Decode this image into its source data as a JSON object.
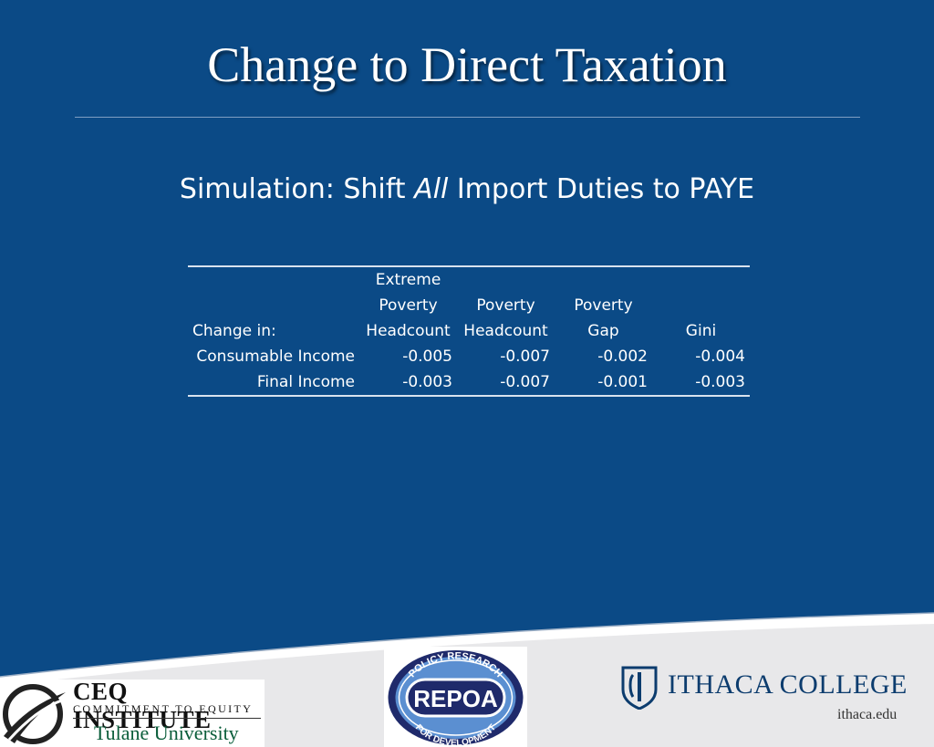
{
  "slide": {
    "title": "Change to Direct Taxation",
    "subtitle_prefix": "Simulation: Shift ",
    "subtitle_emphasis": "All",
    "subtitle_suffix": " Import Duties to PAYE"
  },
  "table": {
    "corner_label": "Change in:",
    "columns": [
      {
        "lines": [
          "Extreme",
          "Poverty",
          "Headcount"
        ]
      },
      {
        "lines": [
          "Poverty",
          "Headcount"
        ]
      },
      {
        "lines": [
          "Poverty",
          "Gap"
        ]
      },
      {
        "lines": [
          "Gini"
        ]
      }
    ],
    "rows": [
      {
        "label": "Consumable Income",
        "values": [
          "-0.005",
          "-0.007",
          "-0.002",
          "-0.004"
        ]
      },
      {
        "label": "Final Income",
        "values": [
          "-0.003",
          "-0.007",
          "-0.001",
          "-0.003"
        ]
      }
    ]
  },
  "logos": {
    "ceq": {
      "line1": "CEQ INSTITUTE",
      "line2": "COMMITMENT TO EQUITY",
      "line3": "Tulane University"
    },
    "repoa": {
      "center": "REPOA",
      "top_arc": "POLICY RESEARCH",
      "bottom_arc": "FOR DEVELOPMENT"
    },
    "ithaca": {
      "name": "ITHACA COLLEGE",
      "url": "ithaca.edu"
    }
  },
  "colors": {
    "background": "#0b4a86",
    "footer": "#e8e8ea",
    "ithaca_blue": "#0c3c6e",
    "repoa_navy": "#1f2a6b"
  }
}
